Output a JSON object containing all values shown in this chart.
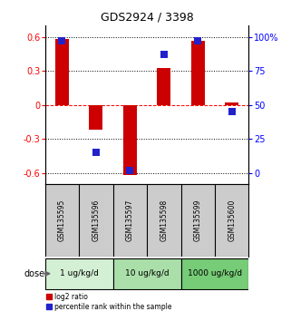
{
  "title": "GDS2924 / 3398",
  "samples": [
    "GSM135595",
    "GSM135596",
    "GSM135597",
    "GSM135598",
    "GSM135599",
    "GSM135600"
  ],
  "log2_ratio": [
    0.58,
    -0.22,
    -0.62,
    0.33,
    0.57,
    0.02
  ],
  "percentile_rank": [
    97,
    15,
    2,
    87,
    97,
    45
  ],
  "doses": [
    {
      "label": "1 ug/kg/d",
      "spans": [
        0,
        1
      ]
    },
    {
      "label": "10 ug/kg/d",
      "spans": [
        2,
        3
      ]
    },
    {
      "label": "1000 ug/kg/d",
      "spans": [
        4,
        5
      ]
    }
  ],
  "dose_colors": [
    "#d4f0d4",
    "#aadfaa",
    "#77cc77"
  ],
  "ylim_left": [
    -0.7,
    0.7
  ],
  "ylim_right": [
    -8.167,
    108.167
  ],
  "yticks_left": [
    -0.6,
    -0.3,
    0.0,
    0.3,
    0.6
  ],
  "ytick_labels_left": [
    "-0.6",
    "-0.3",
    "0",
    "0.3",
    "0.6"
  ],
  "yticks_right": [
    0,
    25,
    50,
    75,
    100
  ],
  "ytick_labels_right": [
    "0",
    "25",
    "50",
    "75",
    "100%"
  ],
  "bar_color": "#cc0000",
  "dot_color": "#2222cc",
  "bg_color": "#ffffff",
  "sample_bg": "#cccccc",
  "bar_width": 0.4,
  "dot_size": 28
}
